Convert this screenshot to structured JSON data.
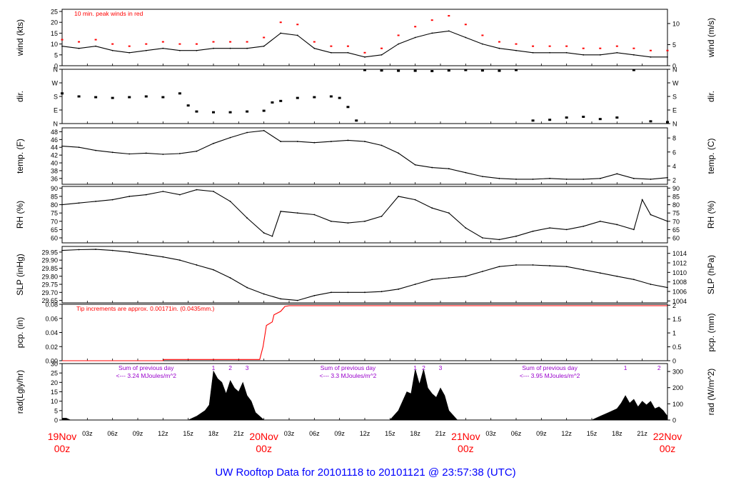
{
  "title": "UW Rooftop Data for 20101118  to  20101121 @ 23:57:38  (UTC)",
  "colors": {
    "axis": "#000000",
    "trace": "#000000",
    "peak": "#ff0000",
    "precip": "#ff0000",
    "annot": "#9900cc",
    "title": "#0000ff",
    "daytick": "#ff0000"
  },
  "x_axis": {
    "hour_labels": [
      "03z",
      "06z",
      "09z",
      "12z",
      "15z",
      "18z",
      "21z",
      "03z",
      "06z",
      "09z",
      "12z",
      "15z",
      "18z",
      "21z",
      "03z",
      "06z",
      "09z",
      "12z",
      "15z",
      "18z",
      "21z"
    ],
    "day_labels": [
      {
        "hours": 0,
        "day": "19Nov",
        "time": "00z"
      },
      {
        "hours": 24,
        "day": "20Nov",
        "time": "00z"
      },
      {
        "hours": 48,
        "day": "21Nov",
        "time": "00z"
      },
      {
        "hours": 72,
        "day": "22Nov",
        "time": "00z"
      }
    ],
    "hour_positions": [
      3,
      6,
      9,
      12,
      15,
      18,
      21,
      27,
      30,
      33,
      36,
      39,
      42,
      45,
      51,
      54,
      57,
      60,
      63,
      66,
      69
    ],
    "range_hours": [
      0,
      72
    ]
  },
  "chart_data": [
    {
      "id": "wind",
      "type": "line",
      "ylabel_left": "wind (kts)",
      "ylabel_right": "wind (m/s)",
      "ylim": [
        0,
        26
      ],
      "left_ticks": [
        "0",
        "5",
        "10",
        "15",
        "20",
        "25"
      ],
      "left_tick_values": [
        0,
        5,
        10,
        15,
        20,
        25
      ],
      "right_ticks": [
        "0",
        "5",
        "10"
      ],
      "right_tick_values": [
        0,
        9.72,
        19.44
      ],
      "annotation": "10 min. peak winds in red",
      "series": [
        {
          "name": "wind speed",
          "x": [
            0,
            2,
            4,
            6,
            8,
            10,
            12,
            14,
            16,
            18,
            20,
            22,
            24,
            26,
            28,
            30,
            32,
            34,
            36,
            38,
            40,
            42,
            44,
            46,
            48,
            50,
            52,
            54,
            56,
            58,
            60,
            62,
            64,
            66,
            68,
            70,
            72
          ],
          "values": [
            9,
            8,
            9,
            7,
            6,
            7,
            8,
            7,
            7,
            8,
            8,
            8,
            9,
            15,
            14,
            8,
            6,
            6,
            4,
            5,
            10,
            13,
            15,
            16,
            13,
            10,
            8,
            7,
            6,
            6,
            6,
            5,
            5,
            6,
            5,
            4,
            4
          ]
        },
        {
          "name": "10 min peak",
          "x": [
            0,
            2,
            4,
            6,
            8,
            10,
            12,
            14,
            16,
            18,
            20,
            22,
            24,
            26,
            28,
            30,
            32,
            34,
            36,
            38,
            40,
            42,
            44,
            46,
            48,
            50,
            52,
            54,
            56,
            58,
            60,
            62,
            64,
            66,
            68,
            70,
            72
          ],
          "values": [
            12,
            11,
            12,
            10,
            9,
            10,
            11,
            10,
            10,
            11,
            11,
            11,
            13,
            20,
            19,
            11,
            9,
            9,
            6,
            8,
            14,
            18,
            21,
            23,
            19,
            14,
            11,
            10,
            9,
            9,
            9,
            8,
            8,
            9,
            8,
            7,
            7
          ]
        }
      ]
    },
    {
      "id": "dir",
      "type": "scatter",
      "ylabel_left": "dir.",
      "ylabel_right": "dir.",
      "ylim": [
        0,
        360
      ],
      "left_ticks": [
        "N",
        "E",
        "S",
        "W",
        "N"
      ],
      "left_tick_values": [
        0,
        90,
        180,
        270,
        360
      ],
      "right_ticks": [
        "N",
        "E",
        "S",
        "W",
        "N"
      ],
      "right_tick_values": [
        0,
        90,
        180,
        270,
        360
      ],
      "series": [
        {
          "name": "wind direction",
          "x": [
            0,
            2,
            4,
            6,
            8,
            10,
            12,
            14,
            15,
            16,
            18,
            20,
            22,
            24,
            25,
            26,
            28,
            30,
            32,
            33,
            34,
            35,
            36,
            38,
            40,
            42,
            44,
            46,
            48,
            50,
            52,
            54,
            56,
            58,
            60,
            62,
            64,
            66,
            68,
            70,
            72
          ],
          "values": [
            200,
            180,
            175,
            170,
            175,
            180,
            175,
            200,
            120,
            80,
            75,
            75,
            80,
            85,
            140,
            150,
            170,
            175,
            180,
            170,
            110,
            20,
            355,
            352,
            350,
            350,
            348,
            352,
            355,
            352,
            350,
            355,
            20,
            25,
            40,
            45,
            30,
            40,
            355,
            15,
            10
          ]
        }
      ]
    },
    {
      "id": "temp",
      "type": "line",
      "ylabel_left": "temp. (F)",
      "ylabel_right": "temp. (C)",
      "ylim": [
        34.5,
        49
      ],
      "left_ticks": [
        "36",
        "38",
        "40",
        "42",
        "44",
        "46",
        "48"
      ],
      "left_tick_values": [
        36,
        38,
        40,
        42,
        44,
        46,
        48
      ],
      "right_ticks": [
        "2",
        "4",
        "6",
        "8"
      ],
      "right_tick_values": [
        35.6,
        39.2,
        42.8,
        46.4
      ],
      "series": [
        {
          "name": "temperature",
          "x": [
            0,
            2,
            4,
            6,
            8,
            10,
            12,
            14,
            16,
            18,
            20,
            22,
            24,
            26,
            28,
            30,
            32,
            34,
            36,
            38,
            40,
            42,
            44,
            46,
            48,
            50,
            52,
            54,
            56,
            58,
            60,
            62,
            64,
            66,
            68,
            70,
            72
          ],
          "values": [
            44.3,
            44,
            43.2,
            42.7,
            42.3,
            42.5,
            42.2,
            42.4,
            43,
            45,
            46.5,
            47.8,
            48.3,
            45.5,
            45.5,
            45.2,
            45.5,
            45.8,
            45.5,
            44.5,
            42.5,
            39.5,
            38.8,
            38.5,
            37.5,
            36.5,
            36,
            35.8,
            35.8,
            36,
            35.8,
            35.8,
            36,
            37.2,
            36,
            35.8,
            36.2
          ]
        }
      ]
    },
    {
      "id": "rh",
      "type": "line",
      "ylabel_left": "RH (%)",
      "ylabel_right": "RH (%)",
      "ylim": [
        57,
        91
      ],
      "left_ticks": [
        "60",
        "65",
        "70",
        "75",
        "80",
        "85",
        "90"
      ],
      "left_tick_values": [
        60,
        65,
        70,
        75,
        80,
        85,
        90
      ],
      "right_ticks": [
        "60",
        "65",
        "70",
        "75",
        "80",
        "85",
        "90"
      ],
      "right_tick_values": [
        60,
        65,
        70,
        75,
        80,
        85,
        90
      ],
      "series": [
        {
          "name": "relative humidity",
          "x": [
            0,
            2,
            4,
            6,
            8,
            10,
            12,
            14,
            16,
            18,
            20,
            22,
            24,
            25,
            26,
            28,
            30,
            32,
            34,
            36,
            38,
            40,
            42,
            44,
            46,
            48,
            50,
            52,
            54,
            56,
            58,
            60,
            62,
            64,
            66,
            68,
            69,
            70,
            72
          ],
          "values": [
            80,
            81,
            82,
            83,
            85,
            86,
            88,
            86,
            89,
            88,
            82,
            72,
            63,
            61,
            76,
            75,
            74,
            70,
            69,
            70,
            73,
            85,
            83,
            78,
            75,
            66,
            60,
            59,
            61,
            64,
            66,
            65,
            67,
            70,
            68,
            65,
            83,
            74,
            70
          ]
        }
      ]
    },
    {
      "id": "slp",
      "type": "line",
      "ylabel_left": "SLP (inHg)",
      "ylabel_right": "SLP (hPa)",
      "ylim": [
        29.635,
        29.985
      ],
      "left_ticks": [
        "29.65",
        "29.70",
        "29.75",
        "29.80",
        "29.85",
        "29.90",
        "29.95"
      ],
      "left_tick_values": [
        29.65,
        29.7,
        29.75,
        29.8,
        29.85,
        29.9,
        29.95
      ],
      "right_ticks": [
        "1004",
        "1006",
        "1008",
        "1010",
        "1012",
        "1014"
      ],
      "right_tick_values": [
        29.647,
        29.706,
        29.765,
        29.824,
        29.883,
        29.942
      ],
      "series": [
        {
          "name": "sea level pressure",
          "x": [
            0,
            2,
            4,
            6,
            8,
            10,
            12,
            14,
            16,
            18,
            20,
            22,
            24,
            26,
            28,
            30,
            32,
            34,
            36,
            38,
            40,
            42,
            44,
            46,
            48,
            50,
            52,
            54,
            56,
            58,
            60,
            62,
            64,
            66,
            68,
            70,
            72
          ],
          "values": [
            29.96,
            29.965,
            29.967,
            29.96,
            29.95,
            29.935,
            29.92,
            29.9,
            29.87,
            29.84,
            29.79,
            29.73,
            29.69,
            29.66,
            29.65,
            29.68,
            29.7,
            29.7,
            29.7,
            29.705,
            29.72,
            29.75,
            29.78,
            29.79,
            29.8,
            29.83,
            29.86,
            29.87,
            29.87,
            29.865,
            29.86,
            29.84,
            29.82,
            29.8,
            29.78,
            29.75,
            29.73
          ]
        }
      ]
    },
    {
      "id": "pcp",
      "type": "line",
      "ylabel_left": "pcp. (in)",
      "ylabel_right": "pcp. (mm)",
      "ylim": [
        0,
        0.08
      ],
      "left_ticks": [
        "0.00",
        "0.02",
        "0.04",
        "0.06",
        "0.08"
      ],
      "left_tick_values": [
        0,
        0.02,
        0.04,
        0.06,
        0.08
      ],
      "right_ticks": [
        "0",
        "0.5",
        "1",
        "1.5",
        "2"
      ],
      "right_tick_values": [
        0,
        0.0197,
        0.0394,
        0.0591,
        0.0787
      ],
      "annotation": "Tip increments are approx. 0.00171in. (0.0435mm.)",
      "series": [
        {
          "name": "accumulated precipitation",
          "x": [
            0,
            12,
            12.1,
            23.5,
            23.9,
            24.3,
            25,
            25.2,
            26,
            26.5,
            27,
            72
          ],
          "values": [
            0,
            0,
            0.00171,
            0.00171,
            0.02,
            0.05,
            0.055,
            0.065,
            0.07,
            0.077,
            0.078,
            0.078
          ]
        }
      ]
    },
    {
      "id": "rad",
      "type": "area",
      "ylabel_left": "rad(Lgly/hr)",
      "ylabel_right": "rad (W/m^2)",
      "ylim": [
        0,
        30
      ],
      "left_ticks": [
        "0",
        "5",
        "10",
        "15",
        "20",
        "25",
        "30"
      ],
      "left_tick_values": [
        0,
        5,
        10,
        15,
        20,
        25,
        30
      ],
      "right_ticks": [
        "0",
        "100",
        "200",
        "300"
      ],
      "right_tick_values": [
        0,
        8.6,
        17.2,
        25.8
      ],
      "annotations": [
        {
          "hours": 10,
          "line1": "Sum of previous day",
          "line2": "<--- 3.24 MJoules/m^2"
        },
        {
          "hours": 34,
          "line1": "Sum of previous day",
          "line2": "<--- 3.3 MJoules/m^2"
        },
        {
          "hours": 58,
          "line1": "Sum of previous day",
          "line2": "<--- 3.95 MJoules/m^2"
        }
      ],
      "hour_marks": [
        {
          "hours": 18,
          "label": "1"
        },
        {
          "hours": 20,
          "label": "2"
        },
        {
          "hours": 22,
          "label": "3"
        },
        {
          "hours": 42,
          "label": "1"
        },
        {
          "hours": 43,
          "label": "2"
        },
        {
          "hours": 45,
          "label": "3"
        },
        {
          "hours": 67,
          "label": "1"
        },
        {
          "hours": 71,
          "label": "2"
        }
      ],
      "series": [
        {
          "name": "solar radiation",
          "x": [
            0,
            0.5,
            1,
            15,
            16,
            17,
            17.5,
            18,
            18.5,
            19,
            19.5,
            20,
            20.5,
            21,
            21.5,
            22,
            22.5,
            23,
            24,
            39,
            40,
            41,
            41.5,
            42,
            42.5,
            43,
            43.5,
            44,
            44.5,
            45,
            45.5,
            46,
            47,
            63,
            64,
            65,
            66,
            66.5,
            67,
            67.5,
            68,
            68.5,
            69,
            69.5,
            70,
            70.5,
            71,
            71.5,
            72
          ],
          "values": [
            1,
            1,
            0,
            0,
            2,
            5,
            8,
            26,
            22,
            20,
            14,
            21,
            17,
            15,
            20,
            13,
            10,
            4,
            0,
            0,
            5,
            15,
            14,
            27,
            19,
            27,
            17,
            14,
            12,
            17,
            13,
            5,
            0,
            0,
            2,
            4,
            6,
            9,
            13,
            9,
            11,
            7,
            10,
            8,
            10,
            6,
            7,
            5,
            2
          ]
        }
      ]
    }
  ]
}
